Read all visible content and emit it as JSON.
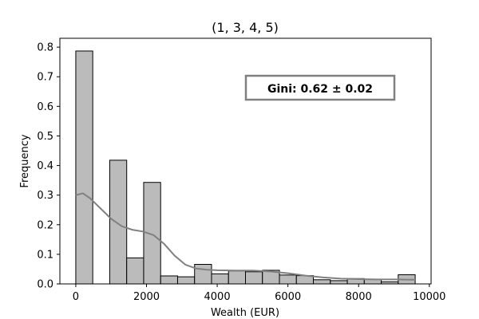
{
  "chart_data": {
    "type": "bar",
    "title": "(1, 3, 4, 5)",
    "xlabel": "Wealth (EUR)",
    "ylabel": "Frequency",
    "xlim": [
      -450,
      10050
    ],
    "ylim": [
      0,
      0.83
    ],
    "x_ticks": [
      0,
      2000,
      4000,
      6000,
      8000,
      10000
    ],
    "y_ticks": [
      0.0,
      0.1,
      0.2,
      0.3,
      0.4,
      0.5,
      0.6,
      0.7,
      0.8
    ],
    "x_tick_labels": [
      "0",
      "2000",
      "4000",
      "6000",
      "8000",
      "10000"
    ],
    "y_tick_labels": [
      "0.0",
      "0.1",
      "0.2",
      "0.3",
      "0.4",
      "0.5",
      "0.6",
      "0.7",
      "0.8"
    ],
    "bin_edges": [
      0,
      480,
      960,
      1440,
      1920,
      2400,
      2880,
      3360,
      3840,
      4320,
      4800,
      5280,
      5760,
      6240,
      6720,
      7200,
      7680,
      8160,
      8640,
      9120,
      9600
    ],
    "values": [
      0.787,
      0.0,
      0.418,
      0.088,
      0.343,
      0.027,
      0.024,
      0.066,
      0.034,
      0.044,
      0.041,
      0.046,
      0.03,
      0.028,
      0.014,
      0.011,
      0.018,
      0.016,
      0.007,
      0.031
    ],
    "kde": {
      "x": [
        0,
        200,
        400,
        700,
        1000,
        1300,
        1600,
        1900,
        2200,
        2500,
        2800,
        3100,
        3400,
        3700,
        4000,
        4500,
        5000,
        5500,
        6000,
        6500,
        7000,
        7500,
        8000,
        8500,
        9000,
        9600
      ],
      "y": [
        0.3,
        0.306,
        0.29,
        0.255,
        0.22,
        0.195,
        0.183,
        0.177,
        0.165,
        0.135,
        0.095,
        0.065,
        0.052,
        0.048,
        0.046,
        0.045,
        0.045,
        0.042,
        0.036,
        0.028,
        0.022,
        0.018,
        0.016,
        0.015,
        0.015,
        0.014
      ]
    },
    "bar_color": "#bbbbbb",
    "bar_edge_color": "#000000",
    "kde_color": "#808080",
    "grid": false,
    "annotation": {
      "text": "Gini: 0.62 ± 0.02"
    }
  }
}
